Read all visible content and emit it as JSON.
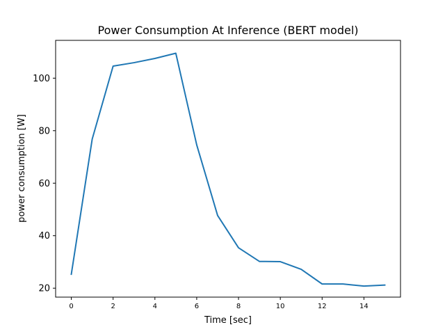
{
  "chart_data": {
    "type": "line",
    "title": "Power Consumption At Inference (BERT model)",
    "xlabel": "Time [sec]",
    "ylabel": "power consumption [W]",
    "xlim": [
      -0.75,
      15.75
    ],
    "ylim": [
      16.6,
      114.4
    ],
    "xticks": [
      0,
      2,
      4,
      6,
      8,
      10,
      12,
      14
    ],
    "yticks": [
      20,
      40,
      60,
      80,
      100
    ],
    "grid": false,
    "series": [
      {
        "color": "#1f77b4",
        "x": [
          0,
          1,
          2,
          3,
          4,
          5,
          6,
          7,
          8,
          9,
          10,
          11,
          12,
          13,
          14,
          15
        ],
        "values": [
          25.3,
          76.8,
          104.6,
          105.9,
          107.5,
          109.5,
          74.6,
          47.7,
          35.4,
          30.2,
          30.1,
          27.2,
          21.6,
          21.6,
          20.8,
          21.2
        ]
      }
    ]
  }
}
